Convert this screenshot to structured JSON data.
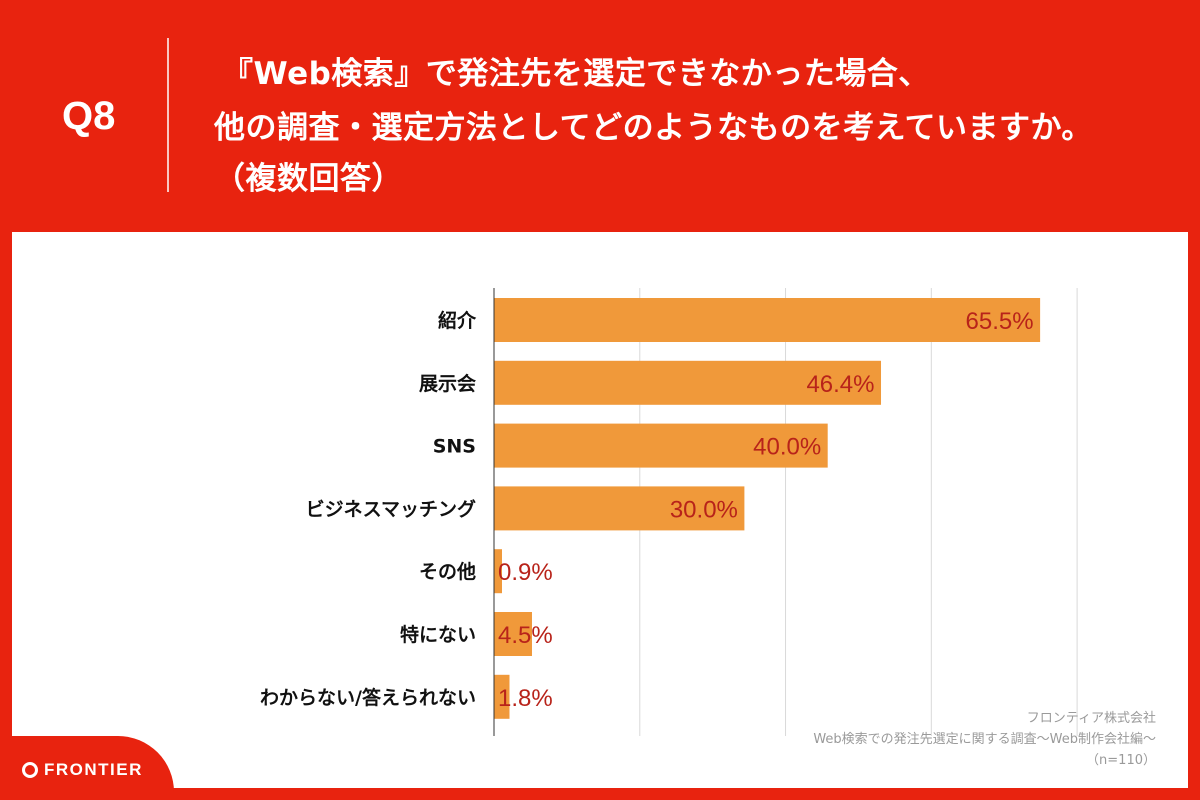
{
  "header": {
    "question_number": "Q8",
    "title_lines": [
      "『Web検索』で発注先を選定できなかった場合、",
      "他の調査・選定方法としてどのようなものを考えていますか。",
      "（複数回答）"
    ]
  },
  "chart_data": {
    "type": "bar",
    "orientation": "horizontal",
    "categories": [
      "紹介",
      "展示会",
      "SNS",
      "ビジネスマッチング",
      "その他",
      "特にない",
      "わからない/答えられない"
    ],
    "values": [
      65.5,
      46.4,
      40.0,
      30.0,
      0.9,
      4.5,
      1.8
    ],
    "value_labels": [
      "65.5%",
      "46.4%",
      "40.0%",
      "30.0%",
      "0.9%",
      "4.5%",
      "1.8%"
    ],
    "xlim": [
      0,
      70
    ],
    "grid": true,
    "bar_color": "#f0993a",
    "label_color": "#b8231a"
  },
  "source": {
    "company": "フロンティア株式会社",
    "survey": "Web検索での発注先選定に関する調査〜Web制作会社編〜",
    "sample": "（n=110）"
  },
  "logo": {
    "text": "FRONTIER"
  },
  "colors": {
    "background": "#e8230f",
    "panel": "#ffffff"
  }
}
